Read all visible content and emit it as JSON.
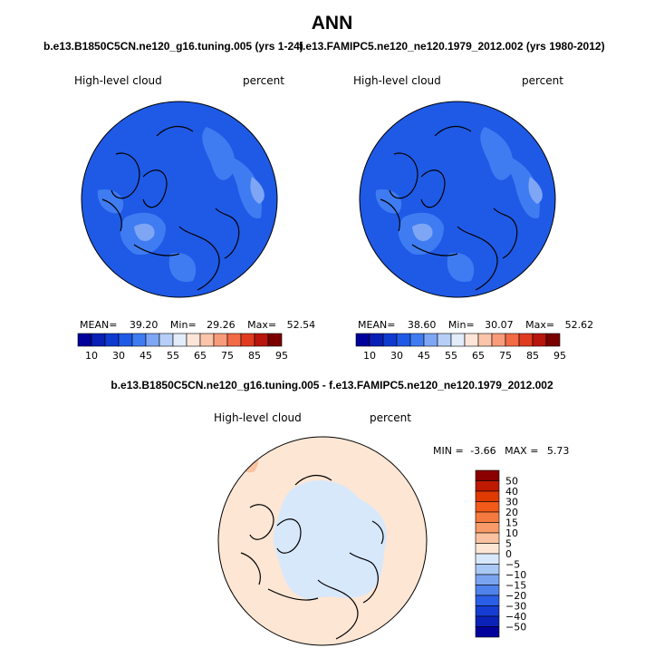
{
  "title": "ANN",
  "panels": [
    {
      "case": "b.e13.B1850C5CN.ne120_g16.tuning.005 (yrs 1-24)",
      "variable": "High-level cloud",
      "units": "percent",
      "stats": {
        "mean_label": "MEAN=",
        "mean": "39.20",
        "min_label": "Min=",
        "min": "29.26",
        "max_label": "Max=",
        "max": "52.54"
      }
    },
    {
      "case": "f.e13.FAMIPC5.ne120_ne120.1979_2012.002 (yrs 1980-2012)",
      "variable": "High-level cloud",
      "units": "percent",
      "stats": {
        "mean_label": "MEAN=",
        "mean": "38.60",
        "min_label": "Min=",
        "min": "30.07",
        "max_label": "Max=",
        "max": "52.62"
      }
    }
  ],
  "main_colorbar": {
    "labels": [
      "10",
      "30",
      "45",
      "55",
      "65",
      "75",
      "85",
      "95"
    ],
    "colors": [
      "#00009a",
      "#0a1fb5",
      "#0e3ad0",
      "#1f5ae6",
      "#3f7cf2",
      "#7ea6f4",
      "#b6cff8",
      "#e2ecfb",
      "#fde6d8",
      "#fbc5aa",
      "#f89b7a",
      "#f26a46",
      "#e03b1e",
      "#b8150d",
      "#7a0000"
    ]
  },
  "difference": {
    "title": "b.e13.B1850C5CN.ne120_g16.tuning.005 - f.e13.FAMIPC5.ne120_ne120.1979_2012.002",
    "variable": "High-level cloud",
    "units": "percent",
    "stats": {
      "min_label": "MIN =",
      "min": "-3.66",
      "max_label": "MAX =",
      "max": "5.73"
    },
    "colorbar": {
      "labels": [
        "50",
        "40",
        "30",
        "20",
        "15",
        "10",
        "5",
        "0",
        "−5",
        "−10",
        "−15",
        "−20",
        "−30",
        "−40",
        "−50"
      ],
      "colors": [
        "#8b0000",
        "#bf1a00",
        "#e03a00",
        "#f25a1a",
        "#f57a40",
        "#f89a6a",
        "#fac2a0",
        "#fde6d4",
        "#d8e8fb",
        "#aac8f5",
        "#7aa4ef",
        "#4f82ea",
        "#2a5ee6",
        "#163dd3",
        "#0a22b8",
        "#00009a"
      ]
    }
  },
  "colors": {
    "map_base": "#1f5ae6",
    "map_light": "#3f7cf2",
    "map_lighter": "#7ea6f4",
    "diff_base": "#fde6d4",
    "diff_neg": "#d8e8fb",
    "diff_pos": "#fac2a0"
  }
}
